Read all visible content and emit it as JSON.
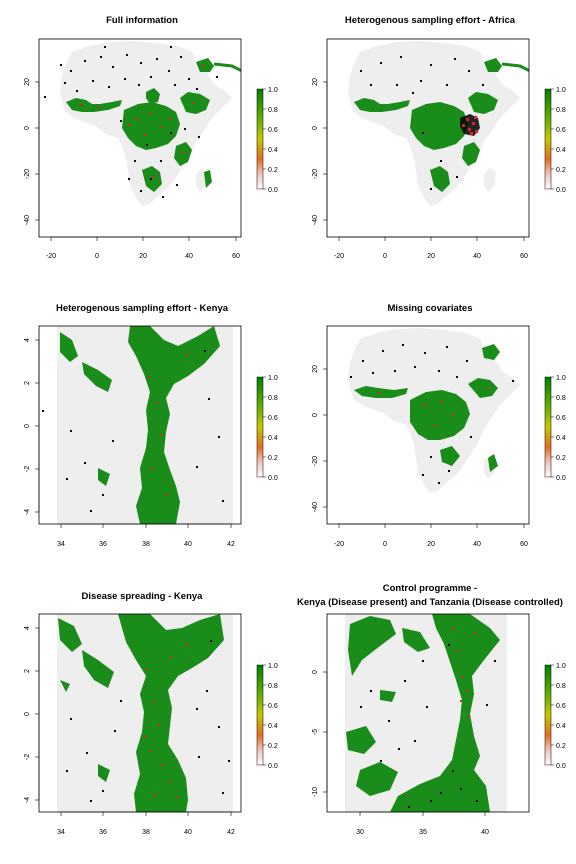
{
  "figure": {
    "panels": [
      {
        "id": "full",
        "title_lines": [
          "Full information"
        ],
        "x_ticks": [
          "-20",
          "0",
          "20",
          "40",
          "60"
        ],
        "y_ticks": [
          "20",
          "0",
          "-20",
          "-40"
        ],
        "legend_ticks": [
          "1.0",
          "0.8",
          "0.6",
          "0.4",
          "0.2",
          "0.0"
        ]
      },
      {
        "id": "hetero-africa",
        "title_lines": [
          "Heterogenous sampling effort - Africa"
        ],
        "x_ticks": [
          "-20",
          "0",
          "20",
          "40",
          "60"
        ],
        "y_ticks": [
          "20",
          "0",
          "-20",
          "-40"
        ],
        "legend_ticks": [
          "1.0",
          "0.8",
          "0.6",
          "0.4",
          "0.2",
          "0.0"
        ]
      },
      {
        "id": "hetero-kenya",
        "title_lines": [
          "Heterogenous sampling effort - Kenya"
        ],
        "x_ticks": [
          "34",
          "36",
          "38",
          "40",
          "42"
        ],
        "y_ticks": [
          "4",
          "2",
          "0",
          "-2",
          "-4"
        ],
        "legend_ticks": [
          "1.0",
          "0.8",
          "0.6",
          "0.4",
          "0.2",
          "0.0"
        ]
      },
      {
        "id": "missing-covariates",
        "title_lines": [
          "Missing covariates"
        ],
        "x_ticks": [
          "-20",
          "0",
          "20",
          "40",
          "60"
        ],
        "y_ticks": [
          "20",
          "0",
          "-20",
          "-40"
        ],
        "legend_ticks": [
          "1.0",
          "0.8",
          "0.6",
          "0.4",
          "0.2",
          "0.0"
        ]
      },
      {
        "id": "disease-spreading",
        "title_lines": [
          "Disease spreading - Kenya"
        ],
        "x_ticks": [
          "34",
          "36",
          "38",
          "40",
          "42"
        ],
        "y_ticks": [
          "4",
          "2",
          "0",
          "-2",
          "-4"
        ],
        "legend_ticks": [
          "1.0",
          "0.8",
          "0.6",
          "0.4",
          "0.2",
          "0.0"
        ]
      },
      {
        "id": "control-programme",
        "title_lines": [
          "Control programme -",
          "Kenya (Disease present) and Tanzania (Disease controlled)"
        ],
        "x_ticks": [
          "30",
          "35",
          "40"
        ],
        "y_ticks": [
          "0",
          "-5",
          "-10"
        ],
        "legend_ticks": [
          "1.0",
          "0.8",
          "0.6",
          "0.4",
          "0.2",
          "0.0"
        ]
      }
    ]
  },
  "chart_data": [
    {
      "type": "heatmap",
      "title": "Full information",
      "xlabel": "",
      "ylabel": "",
      "x_ticks": [
        -20,
        0,
        20,
        40,
        60
      ],
      "y_ticks": [
        20,
        0,
        -20,
        -40
      ],
      "xlim": [
        -26,
        64
      ],
      "ylim": [
        -50,
        38
      ],
      "legend": {
        "min": 0.0,
        "max": 1.0,
        "ticks": [
          0.0,
          0.2,
          0.4,
          0.6,
          0.8,
          1.0
        ],
        "colors": [
          "#f2f2f2",
          "#f7c7b2",
          "#e06a1a",
          "#c8c800",
          "#66b800",
          "#008000"
        ]
      },
      "points": {
        "black": "absence",
        "red": "presence"
      }
    },
    {
      "type": "heatmap",
      "title": "Heterogenous sampling effort - Africa",
      "xlabel": "",
      "ylabel": "",
      "x_ticks": [
        -20,
        0,
        20,
        40,
        60
      ],
      "y_ticks": [
        20,
        0,
        -20,
        -40
      ],
      "xlim": [
        -26,
        64
      ],
      "ylim": [
        -50,
        38
      ],
      "legend": {
        "min": 0.0,
        "max": 1.0,
        "ticks": [
          0.0,
          0.2,
          0.4,
          0.6,
          0.8,
          1.0
        ]
      }
    },
    {
      "type": "heatmap",
      "title": "Heterogenous sampling effort - Kenya",
      "xlabel": "",
      "ylabel": "",
      "x_ticks": [
        34,
        36,
        38,
        40,
        42
      ],
      "y_ticks": [
        4,
        2,
        0,
        -2,
        -4
      ],
      "xlim": [
        33,
        42.5
      ],
      "ylim": [
        -4.8,
        4.8
      ],
      "legend": {
        "min": 0.0,
        "max": 1.0,
        "ticks": [
          0.0,
          0.2,
          0.4,
          0.6,
          0.8,
          1.0
        ]
      }
    },
    {
      "type": "heatmap",
      "title": "Missing covariates",
      "xlabel": "",
      "ylabel": "",
      "x_ticks": [
        -20,
        0,
        20,
        40,
        60
      ],
      "y_ticks": [
        20,
        0,
        -20,
        -40
      ],
      "xlim": [
        -26,
        64
      ],
      "ylim": [
        -50,
        38
      ],
      "legend": {
        "min": 0.0,
        "max": 1.0,
        "ticks": [
          0.0,
          0.2,
          0.4,
          0.6,
          0.8,
          1.0
        ]
      }
    },
    {
      "type": "heatmap",
      "title": "Disease spreading - Kenya",
      "xlabel": "",
      "ylabel": "",
      "x_ticks": [
        34,
        36,
        38,
        40,
        42
      ],
      "y_ticks": [
        4,
        2,
        0,
        -2,
        -4
      ],
      "xlim": [
        33,
        42.5
      ],
      "ylim": [
        -4.8,
        4.8
      ],
      "legend": {
        "min": 0.0,
        "max": 1.0,
        "ticks": [
          0.0,
          0.2,
          0.4,
          0.6,
          0.8,
          1.0
        ]
      }
    },
    {
      "type": "heatmap",
      "title": "Control programme - Kenya (Disease present) and Tanzania (Disease controlled)",
      "xlabel": "",
      "ylabel": "",
      "x_ticks": [
        30,
        35,
        40
      ],
      "y_ticks": [
        0,
        -5,
        -10
      ],
      "xlim": [
        28,
        44
      ],
      "ylim": [
        -12,
        4.6
      ],
      "legend": {
        "min": 0.0,
        "max": 1.0,
        "ticks": [
          0.0,
          0.2,
          0.4,
          0.6,
          0.8,
          1.0
        ]
      }
    }
  ]
}
